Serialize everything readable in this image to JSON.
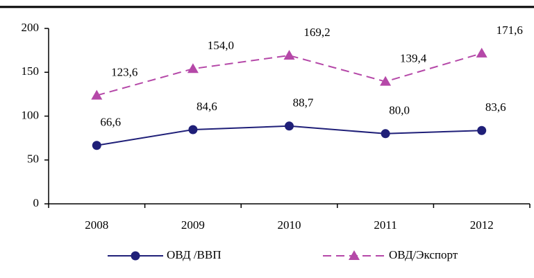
{
  "chart_data": {
    "type": "line",
    "categories": [
      "2008",
      "2009",
      "2010",
      "2011",
      "2012"
    ],
    "series": [
      {
        "name": "ОВД /ВВП",
        "color": "#1f1f78",
        "marker": "circle",
        "dashed": false,
        "values": [
          66.6,
          84.6,
          88.7,
          80.0,
          83.6
        ],
        "value_labels": [
          "66,6",
          "84,6",
          "88,7",
          "80,0",
          "83,6"
        ]
      },
      {
        "name": "ОВД/Экспорт",
        "color": "#b548a8",
        "marker": "triangle",
        "dashed": true,
        "values": [
          123.6,
          154.0,
          169.2,
          139.4,
          171.6
        ],
        "value_labels": [
          "123,6",
          "154,0",
          "169,2",
          "139,4",
          "171,6"
        ]
      }
    ],
    "ylim": [
      0,
      200
    ],
    "yticks": [
      0,
      50,
      100,
      150,
      200
    ],
    "grid": false,
    "legend": "bottom"
  }
}
